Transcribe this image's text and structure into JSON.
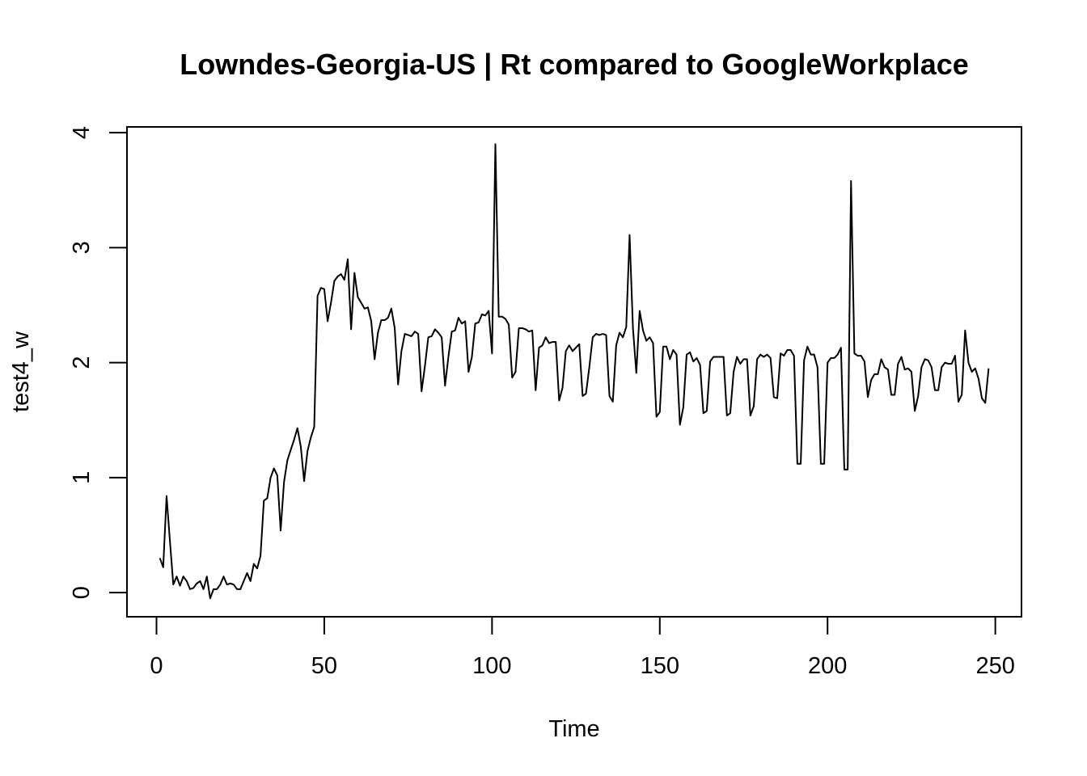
{
  "chart_data": {
    "type": "line",
    "title": "Lowndes-Georgia-US | Rt compared to GoogleWorkplace",
    "xlabel": "Time",
    "ylabel": "test4_w",
    "xlim": [
      -8.8,
      257.8
    ],
    "ylim": [
      -0.21,
      4.05
    ],
    "xticks": [
      0,
      50,
      100,
      150,
      200,
      250
    ],
    "xtick_labels": [
      "0",
      "50",
      "100",
      "150",
      "200",
      "250"
    ],
    "yticks": [
      0,
      1,
      2,
      3,
      4
    ],
    "ytick_labels": [
      "0",
      "1",
      "2",
      "3",
      "4"
    ],
    "grid": false,
    "legend": "none",
    "line_color": "#000000",
    "series": [
      {
        "x": [
          1,
          2,
          3,
          4,
          5,
          6,
          7,
          8,
          9,
          10,
          11,
          12,
          13,
          14,
          15,
          16,
          17,
          18,
          19,
          20,
          21,
          22,
          23,
          24,
          25,
          26,
          27,
          28,
          29,
          30,
          31,
          32,
          33,
          34,
          35,
          36,
          37,
          38,
          39,
          40,
          41,
          42,
          43,
          44,
          45,
          46,
          47,
          48,
          49,
          50,
          51,
          52,
          53,
          54,
          55,
          56,
          57,
          58,
          59,
          60,
          61,
          62,
          63,
          64,
          65,
          66,
          67,
          68,
          69,
          70,
          71,
          72,
          73,
          74,
          75,
          76,
          77,
          78,
          79,
          80,
          81,
          82,
          83,
          84,
          85,
          86,
          87,
          88,
          89,
          90,
          91,
          92,
          93,
          94,
          95,
          96,
          97,
          98,
          99,
          100,
          101,
          102,
          103,
          104,
          105,
          106,
          107,
          108,
          109,
          110,
          111,
          112,
          113,
          114,
          115,
          116,
          117,
          118,
          119,
          120,
          121,
          122,
          123,
          124,
          125,
          126,
          127,
          128,
          129,
          130,
          131,
          132,
          133,
          134,
          135,
          136,
          137,
          138,
          139,
          140,
          141,
          142,
          143,
          144,
          145,
          146,
          147,
          148,
          149,
          150,
          151,
          152,
          153,
          154,
          155,
          156,
          157,
          158,
          159,
          160,
          161,
          162,
          163,
          164,
          165,
          166,
          167,
          168,
          169,
          170,
          171,
          172,
          173,
          174,
          175,
          176,
          177,
          178,
          179,
          180,
          181,
          182,
          183,
          184,
          185,
          186,
          187,
          188,
          189,
          190,
          191,
          192,
          193,
          194,
          195,
          196,
          197,
          198,
          199,
          200,
          201,
          202,
          203,
          204,
          205,
          206,
          207,
          208,
          209,
          210,
          211,
          212,
          213,
          214,
          215,
          216,
          217,
          218,
          219,
          220,
          221,
          222,
          223,
          224,
          225,
          226,
          227,
          228,
          229,
          230,
          231,
          232,
          233,
          234,
          235,
          236,
          237,
          238,
          239,
          240,
          241,
          242,
          243,
          244,
          245,
          246,
          247,
          248
        ],
        "values": [
          0.3,
          0.22,
          0.84,
          0.45,
          0.07,
          0.14,
          0.06,
          0.14,
          0.1,
          0.03,
          0.04,
          0.08,
          0.1,
          0.03,
          0.14,
          -0.05,
          0.03,
          0.03,
          0.07,
          0.14,
          0.07,
          0.08,
          0.07,
          0.03,
          0.03,
          0.1,
          0.17,
          0.1,
          0.25,
          0.21,
          0.32,
          0.8,
          0.82,
          1.0,
          1.08,
          1.02,
          0.54,
          0.96,
          1.15,
          1.24,
          1.33,
          1.43,
          1.27,
          0.97,
          1.23,
          1.35,
          1.44,
          2.58,
          2.65,
          2.64,
          2.36,
          2.52,
          2.71,
          2.75,
          2.77,
          2.72,
          2.9,
          2.29,
          2.78,
          2.57,
          2.52,
          2.47,
          2.48,
          2.36,
          2.03,
          2.26,
          2.37,
          2.37,
          2.39,
          2.47,
          2.3,
          1.81,
          2.1,
          2.25,
          2.24,
          2.23,
          2.27,
          2.25,
          1.75,
          1.97,
          2.22,
          2.23,
          2.29,
          2.26,
          2.22,
          1.8,
          2.05,
          2.27,
          2.28,
          2.39,
          2.34,
          2.36,
          1.92,
          2.05,
          2.34,
          2.35,
          2.42,
          2.41,
          2.45,
          2.08,
          3.9,
          2.4,
          2.4,
          2.38,
          2.33,
          1.87,
          1.92,
          2.3,
          2.3,
          2.29,
          2.27,
          2.28,
          1.76,
          2.13,
          2.15,
          2.22,
          2.17,
          2.18,
          2.18,
          1.67,
          1.78,
          2.1,
          2.15,
          2.1,
          2.13,
          2.16,
          1.71,
          1.73,
          1.96,
          2.22,
          2.25,
          2.24,
          2.25,
          2.24,
          1.71,
          1.66,
          2.15,
          2.26,
          2.22,
          2.31,
          3.11,
          2.3,
          1.91,
          2.45,
          2.28,
          2.19,
          2.22,
          2.17,
          1.53,
          1.57,
          2.14,
          2.14,
          2.03,
          2.11,
          2.07,
          1.46,
          1.61,
          2.07,
          2.09,
          2.01,
          2.04,
          1.98,
          1.56,
          1.58,
          2.01,
          2.05,
          2.05,
          2.05,
          2.05,
          1.54,
          1.56,
          1.92,
          2.05,
          1.99,
          2.03,
          2.03,
          1.54,
          1.62,
          2.03,
          2.07,
          2.05,
          2.07,
          2.04,
          1.7,
          1.69,
          2.08,
          2.06,
          2.11,
          2.11,
          2.06,
          1.12,
          1.12,
          2.02,
          2.14,
          2.07,
          2.07,
          1.96,
          1.12,
          1.12,
          2.0,
          2.04,
          2.04,
          2.07,
          2.13,
          1.07,
          1.07,
          3.58,
          2.08,
          2.06,
          2.06,
          2.01,
          1.7,
          1.85,
          1.9,
          1.9,
          2.03,
          1.96,
          1.94,
          1.72,
          1.72,
          1.99,
          2.05,
          1.94,
          1.95,
          1.92,
          1.58,
          1.71,
          1.96,
          2.03,
          2.02,
          1.96,
          1.76,
          1.76,
          1.96,
          2.0,
          1.99,
          1.99,
          2.06,
          1.66,
          1.72,
          2.28,
          2.0,
          1.92,
          1.95,
          1.86,
          1.69,
          1.65,
          1.95
        ]
      }
    ]
  }
}
